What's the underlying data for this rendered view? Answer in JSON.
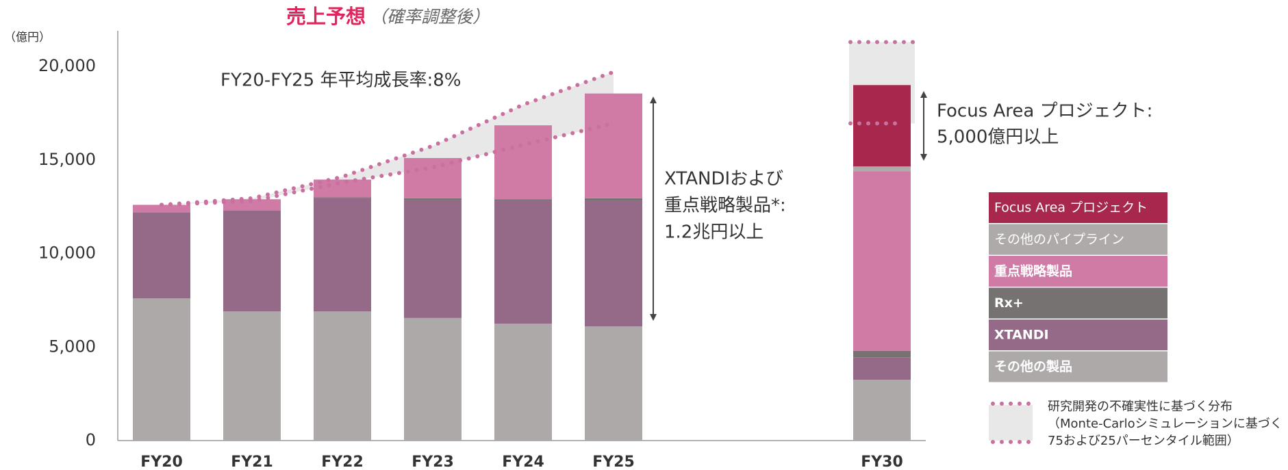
{
  "chart_data": {
    "type": "bar",
    "stacked": true,
    "title": "売上予想",
    "subtitle": "（確率調整後）",
    "y_unit": "（億円）",
    "categories": [
      "FY20",
      "FY21",
      "FY22",
      "FY23",
      "FY24",
      "FY25",
      "FY30"
    ],
    "series": [
      {
        "name": "その他の製品",
        "color": "#ada9a8",
        "values": [
          7600,
          6900,
          6900,
          6550,
          6250,
          6100,
          3250
        ]
      },
      {
        "name": "XTANDI",
        "color": "#946a88",
        "values": [
          4600,
          5400,
          6050,
          6300,
          6550,
          6700,
          1200
        ]
      },
      {
        "name": "Rx+",
        "color": "#767272",
        "values": [
          0,
          0,
          50,
          100,
          100,
          150,
          350
        ]
      },
      {
        "name": "重点戦略製品",
        "color": "#cf7ba6",
        "values": [
          400,
          600,
          950,
          2150,
          3950,
          5600,
          9600
        ]
      },
      {
        "name": "その他のパイプライン",
        "color": "#aeaaa9",
        "values": [
          0,
          0,
          0,
          0,
          0,
          0,
          250
        ]
      },
      {
        "name": "Focus Area プロジェクト",
        "color": "#a7284c",
        "values": [
          0,
          0,
          0,
          0,
          0,
          0,
          4350
        ]
      }
    ],
    "range": {
      "color": "#c9709f",
      "upper": [
        12600,
        12950,
        14100,
        15750,
        17950,
        19700,
        21300
      ],
      "lower": [
        12600,
        12800,
        13800,
        14600,
        15800,
        16950,
        16950
      ],
      "label": [
        "研究開発の不確実性に基づく分布",
        "（Monte-Carloシミュレーションに基づく",
        "75および25パーセンタイル範囲）"
      ]
    },
    "annotations": {
      "cagr": "FY20-FY25 年平均成長率:8%",
      "xtandi": [
        "XTANDIおよび",
        "重点戦略製品*:",
        "1.2兆円以上"
      ],
      "focus": [
        "Focus Area プロジェクト:",
        "5,000億円以上"
      ]
    },
    "ylim": [
      0,
      20800
    ],
    "yticks": [
      0,
      {
        "value": 5000,
        "label": "5,000"
      },
      {
        "value": 10000,
        "label": "10,000"
      },
      {
        "value": 15000,
        "label": "15,000"
      },
      {
        "value": 20000,
        "label": "20,000"
      }
    ],
    "grid": false
  }
}
